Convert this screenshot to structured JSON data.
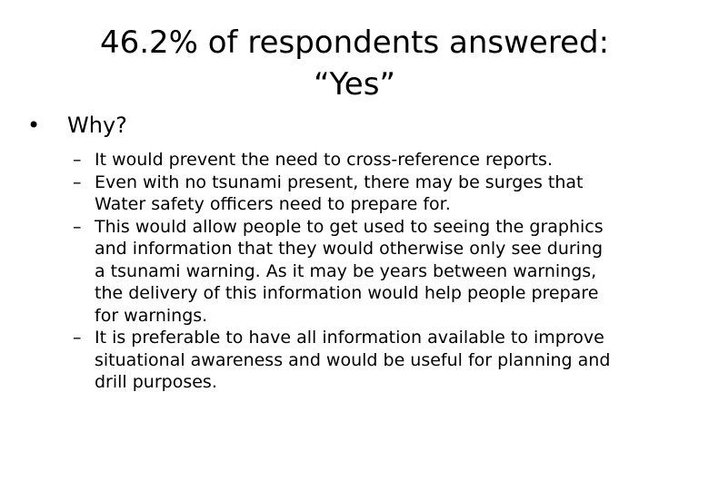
{
  "slide": {
    "title_line1": "46.2% of respondents answered:",
    "title_line2": "“Yes”",
    "bullet_symbol": "•",
    "bullet_text": "Why?",
    "dash_symbol": "–",
    "reasons": [
      {
        "lines": [
          "It would prevent the need to cross-reference reports."
        ]
      },
      {
        "lines": [
          "Even with no tsunami present, there may be surges that",
          "Water safety officers need to prepare for."
        ]
      },
      {
        "lines": [
          "This would allow people to get used to seeing the graphics",
          "and information that they would otherwise only see during",
          "a tsunami warning.  As it may be years between warnings,",
          "the delivery of this information would help people prepare",
          "for warnings."
        ]
      },
      {
        "lines": [
          "It is preferable to have all information available to improve",
          "situational awareness and would be useful for planning and",
          "drill purposes."
        ]
      }
    ]
  }
}
